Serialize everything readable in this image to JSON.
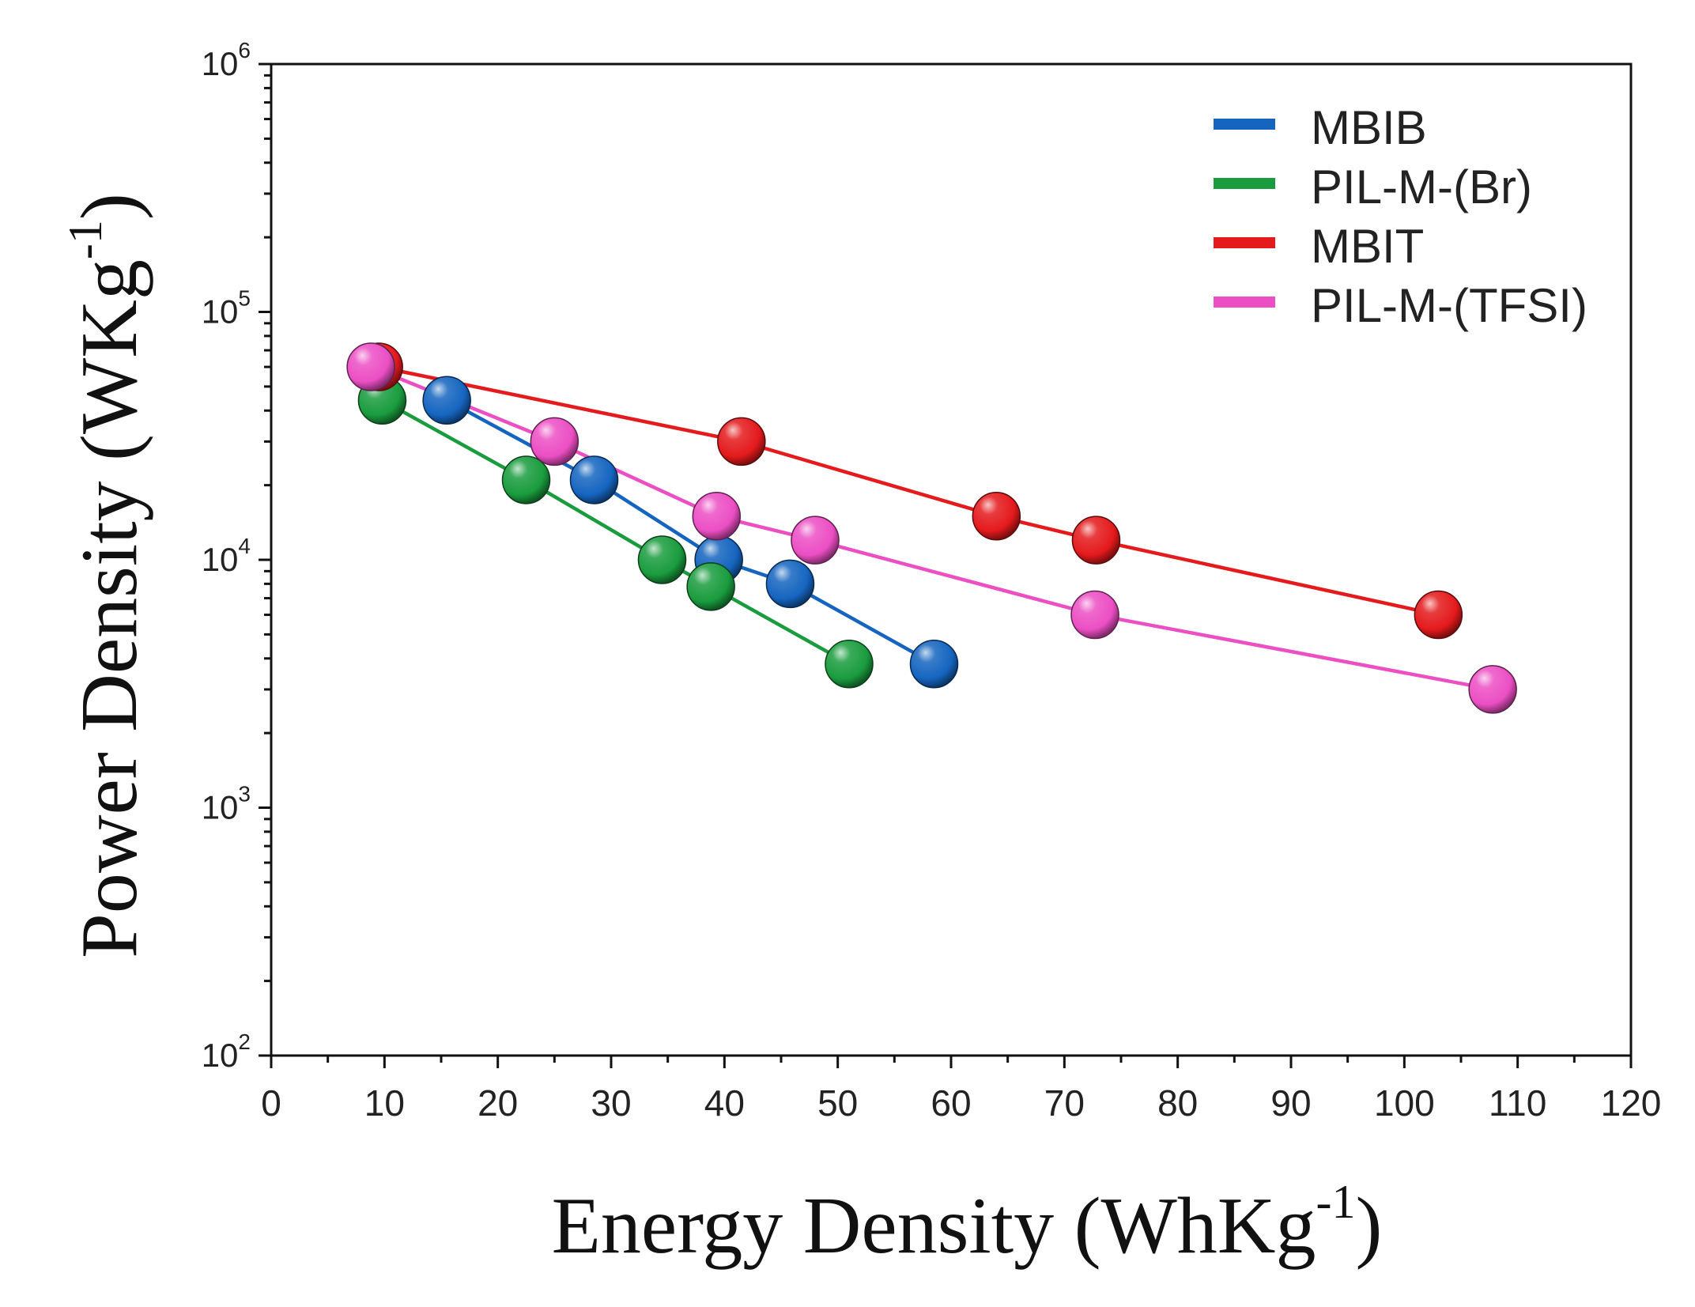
{
  "chart_data": {
    "type": "scatter",
    "xlabel": "Energy Density (WhKg",
    "xlabel_sup": "-1",
    "xlabel_close": ")",
    "ylabel": "Power Density (WKg",
    "ylabel_sup": "-1",
    "ylabel_close": ")",
    "xlim": [
      0,
      120
    ],
    "ylim": [
      100,
      1000000
    ],
    "yscale": "log",
    "x_ticks": [
      0,
      10,
      20,
      30,
      40,
      50,
      60,
      70,
      80,
      90,
      100,
      110,
      120
    ],
    "x_tick_labels": [
      "0",
      "10",
      "20",
      "30",
      "40",
      "50",
      "60",
      "70",
      "80",
      "90",
      "100",
      "110",
      "120"
    ],
    "y_ticks": [
      {
        "value": 100,
        "base": "10",
        "exp": "2"
      },
      {
        "value": 1000,
        "base": "10",
        "exp": "3"
      },
      {
        "value": 10000,
        "base": "10",
        "exp": "4"
      },
      {
        "value": 100000,
        "base": "10",
        "exp": "5"
      },
      {
        "value": 1000000,
        "base": "10",
        "exp": "6"
      }
    ],
    "grid": false,
    "legend_position": "top-right",
    "series": [
      {
        "name": "MBIB",
        "color": "#1565c0",
        "points": [
          [
            15.5,
            44000
          ],
          [
            28.5,
            21000
          ],
          [
            39.5,
            10000
          ],
          [
            45.8,
            8000
          ],
          [
            58.5,
            3800
          ]
        ]
      },
      {
        "name": "PIL-M-(Br)",
        "color": "#1a9c3e",
        "points": [
          [
            9.8,
            44000
          ],
          [
            22.5,
            21000
          ],
          [
            34.5,
            10000
          ],
          [
            38.8,
            7800
          ],
          [
            51.0,
            3800
          ]
        ]
      },
      {
        "name": "MBIT",
        "color": "#e41a1c",
        "points": [
          [
            9.5,
            60000
          ],
          [
            41.5,
            30000
          ],
          [
            64.0,
            15000
          ],
          [
            72.8,
            12000
          ],
          [
            103.0,
            6000
          ]
        ]
      },
      {
        "name": "PIL-M-(TFSI)",
        "color": "#ec4fc4",
        "points": [
          [
            8.8,
            60000
          ],
          [
            25.0,
            30000
          ],
          [
            39.3,
            15000
          ],
          [
            48.0,
            12000
          ],
          [
            72.7,
            6000
          ],
          [
            107.8,
            3000
          ]
        ]
      }
    ]
  }
}
